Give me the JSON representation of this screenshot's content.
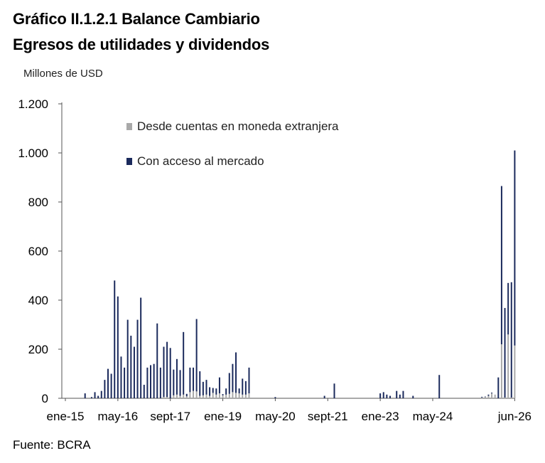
{
  "header": {
    "title": "Gráfico II.1.2.1 Balance Cambiario",
    "subtitle": "Egresos de utilidades y dividendos"
  },
  "footer": {
    "source": "Fuente: BCRA"
  },
  "colors": {
    "mercado": "#1b2a5c",
    "moneda": "#a9a9a9",
    "axis": "#555555"
  },
  "chart_data": {
    "type": "bar",
    "stacked": true,
    "title": "Gráfico II.1.2.1 Balance Cambiario",
    "subtitle": "Egresos de utilidades y dividendos",
    "ylabel": "Millones de USD",
    "xlabel": "",
    "ylim": [
      0,
      1200
    ],
    "yticks": [
      0,
      200,
      400,
      600,
      800,
      1000,
      1200
    ],
    "ytick_labels": [
      "0",
      "200",
      "400",
      "600",
      "800",
      "1.000",
      "1.200"
    ],
    "xtick_labels": [
      "ene-15",
      "may-16",
      "sept-17",
      "ene-19",
      "may-20",
      "sept-21",
      "ene-23",
      "may-24",
      "jun-26"
    ],
    "xtick_positions": [
      0,
      16,
      32,
      48,
      64,
      80,
      96,
      112,
      137
    ],
    "legend": [
      "Desde cuentas en moneda extranjera",
      "Con acceso al mercado"
    ],
    "legend_position": "top-left",
    "grid": false,
    "n_months": 138,
    "series": [
      {
        "name": "Desde cuentas en moneda extranjera",
        "color": "#a9a9a9",
        "points": [
          [
            30,
            5
          ],
          [
            31,
            5
          ],
          [
            33,
            12
          ],
          [
            34,
            15
          ],
          [
            35,
            10
          ],
          [
            36,
            15
          ],
          [
            37,
            8
          ],
          [
            38,
            25
          ],
          [
            39,
            30
          ],
          [
            40,
            28
          ],
          [
            41,
            10
          ],
          [
            42,
            12
          ],
          [
            43,
            15
          ],
          [
            44,
            10
          ],
          [
            45,
            22
          ],
          [
            46,
            15
          ],
          [
            47,
            20
          ],
          [
            48,
            12
          ],
          [
            49,
            15
          ],
          [
            50,
            18
          ],
          [
            51,
            25
          ],
          [
            52,
            22
          ],
          [
            53,
            20
          ],
          [
            54,
            15
          ],
          [
            55,
            15
          ],
          [
            56,
            20
          ],
          [
            127,
            3
          ],
          [
            128,
            5
          ],
          [
            129,
            10
          ],
          [
            130,
            20
          ],
          [
            131,
            15
          ],
          [
            133,
            220
          ],
          [
            134,
            3
          ],
          [
            135,
            260
          ],
          [
            136,
            3
          ],
          [
            137,
            215
          ]
        ]
      },
      {
        "name": "Con acceso al mercado",
        "color": "#1b2a5c",
        "points": [
          [
            6,
            20
          ],
          [
            8,
            5
          ],
          [
            9,
            25
          ],
          [
            10,
            10
          ],
          [
            11,
            30
          ],
          [
            12,
            75
          ],
          [
            13,
            120
          ],
          [
            14,
            100
          ],
          [
            15,
            480
          ],
          [
            16,
            415
          ],
          [
            17,
            170
          ],
          [
            18,
            125
          ],
          [
            19,
            320
          ],
          [
            20,
            255
          ],
          [
            21,
            210
          ],
          [
            22,
            320
          ],
          [
            23,
            410
          ],
          [
            24,
            55
          ],
          [
            25,
            125
          ],
          [
            26,
            135
          ],
          [
            27,
            140
          ],
          [
            28,
            305
          ],
          [
            29,
            125
          ],
          [
            30,
            205
          ],
          [
            31,
            225
          ],
          [
            32,
            205
          ],
          [
            33,
            105
          ],
          [
            34,
            145
          ],
          [
            35,
            105
          ],
          [
            36,
            255
          ],
          [
            37,
            10
          ],
          [
            38,
            100
          ],
          [
            39,
            95
          ],
          [
            40,
            295
          ],
          [
            41,
            100
          ],
          [
            42,
            55
          ],
          [
            43,
            60
          ],
          [
            44,
            35
          ],
          [
            45,
            20
          ],
          [
            46,
            25
          ],
          [
            47,
            65
          ],
          [
            48,
            5
          ],
          [
            49,
            25
          ],
          [
            50,
            85
          ],
          [
            51,
            115
          ],
          [
            52,
            165
          ],
          [
            53,
            20
          ],
          [
            54,
            65
          ],
          [
            55,
            55
          ],
          [
            56,
            105
          ],
          [
            64,
            5
          ],
          [
            79,
            10
          ],
          [
            82,
            60
          ],
          [
            96,
            20
          ],
          [
            97,
            25
          ],
          [
            98,
            15
          ],
          [
            99,
            10
          ],
          [
            101,
            30
          ],
          [
            102,
            15
          ],
          [
            103,
            30
          ],
          [
            106,
            10
          ],
          [
            114,
            95
          ],
          [
            127,
            3
          ],
          [
            128,
            2
          ],
          [
            129,
            5
          ],
          [
            130,
            3
          ],
          [
            132,
            85
          ],
          [
            133,
            645
          ],
          [
            134,
            365
          ],
          [
            135,
            210
          ],
          [
            136,
            470
          ],
          [
            137,
            795
          ]
        ]
      }
    ]
  }
}
